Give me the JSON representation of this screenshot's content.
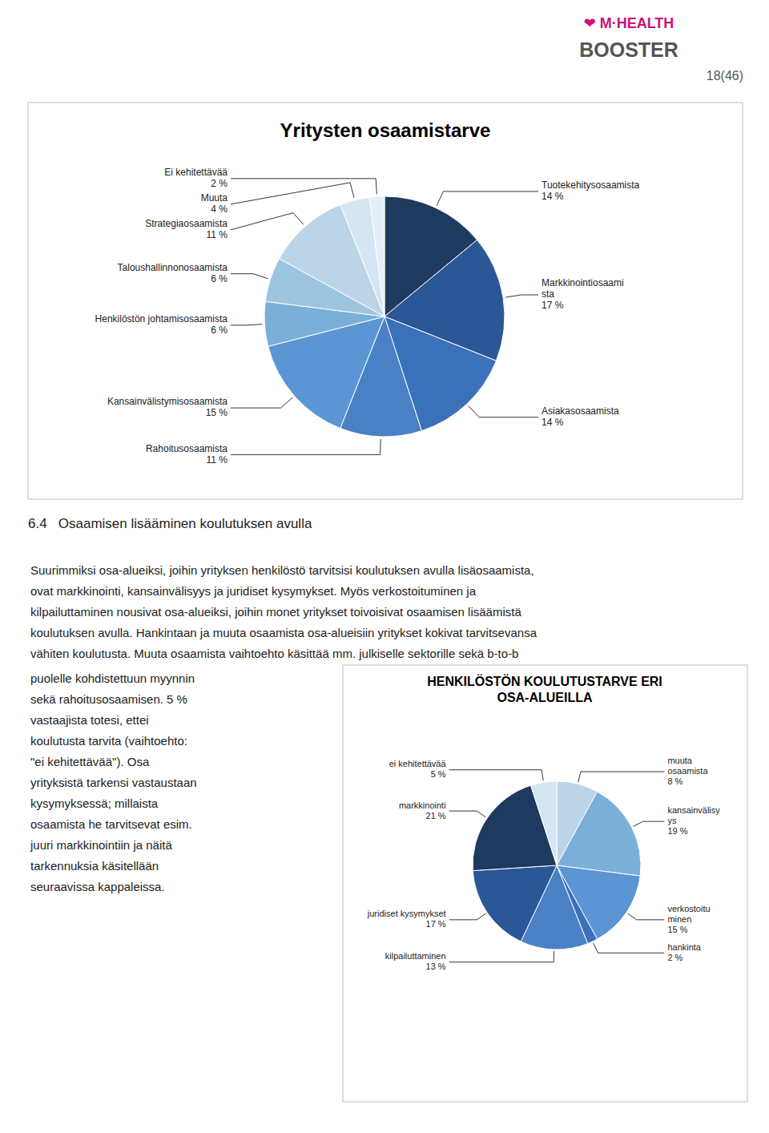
{
  "page_number": "18(46)",
  "logo": [
    "❤ M·HEALTH",
    "BOOSTER"
  ],
  "chart_data": [
    {
      "type": "pie",
      "title": "Yritysten osaamistarve",
      "categories": [
        "Tuotekehitysosaamista",
        "Markkinointiosaami\nsta",
        "Asiakasosaamista",
        "Rahoitusosaamista",
        "Kansainvälistymisosaamista",
        "Henkilöstön johtamisosaamista",
        "Taloushallinnonosaamista",
        "Strategiaosaamista",
        "Muuta",
        "Ei kehitettävää"
      ],
      "values": [
        14,
        17,
        14,
        11,
        15,
        6,
        6,
        11,
        4,
        2
      ],
      "value_labels": [
        "14 %",
        "17 %",
        "14 %",
        "11 %",
        "15 %",
        "6 %",
        "6 %",
        "11 %",
        "4 %",
        "2 %"
      ],
      "colors": [
        "#1e3a5f",
        "#2b5797",
        "#3a71b8",
        "#4a80c4",
        "#5b95d4",
        "#7aafd8",
        "#9ec5e0",
        "#bcd4e8",
        "#d4e6f2",
        "#e5eff8"
      ],
      "data_labels": true
    },
    {
      "type": "pie",
      "title": "HENKILÖSTÖN KOULUTUSTARVE ERI\nOSA-ALUEILLA",
      "categories": [
        "muuta\nosaamista",
        "kansainvälisy\nys",
        "verkostoitu\nminen",
        "hankinta",
        "kilpailuttaminen",
        "juridiset kysymykset",
        "markkinointi",
        "ei kehitettävää"
      ],
      "values": [
        8,
        19,
        15,
        2,
        13,
        17,
        21,
        5
      ],
      "value_labels": [
        "8 %",
        "19 %",
        "15 %",
        "2 %",
        "13 %",
        "17 %",
        "21 %",
        "5 %"
      ],
      "colors": [
        "#bcd4e8",
        "#7aafd8",
        "#5b95d4",
        "#3a71b8",
        "#4a80c4",
        "#2b5797",
        "#1e3a5f",
        "#d4e6f2"
      ],
      "data_labels": true
    }
  ],
  "section_heading": "6.4   Osaamisen lisääminen koulutuksen avulla",
  "body_text": [
    "Suurimmiksi osa-alueiksi, joihin yrityksen henkilöstö tarvitsisi koulutuksen avulla lisäosaamista,",
    "ovat markkinointi, kansainvälisyys ja juridiset kysymykset. Myös verkostoituminen ja",
    "kilpailuttaminen nousivat osa-alueiksi, joihin monet yritykset toivoisivat osaamisen lisäämistä",
    "koulutuksen avulla. Hankintaan ja muuta osaamista osa-alueisiin yritykset kokivat tarvitsevansa",
    "vähiten koulutusta. Muuta osaamista vaihtoehto käsittää mm. julkiselle sektorille sekä b-to-b"
  ],
  "side_text": [
    "puolelle kohdistettuun myynnin",
    "sekä rahoitusosaamisen. 5 %",
    "vastaajista totesi, ettei",
    "koulutusta tarvita (vaihtoehto:",
    "\"ei kehitettävää\"). Osa",
    "yrityksistä tarkensi vastaustaan",
    "kysymyksessä; millaista",
    "osaamista he tarvitsevat esim.",
    "juuri markkinointiin ja näitä",
    "tarkennuksia käsitellään",
    "seuraavissa kappaleissa."
  ]
}
